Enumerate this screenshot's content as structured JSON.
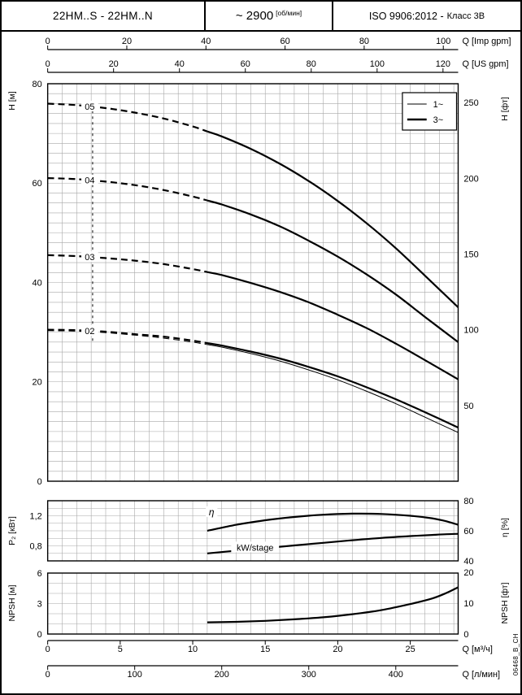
{
  "header": {
    "model": "22HM..S - 22HM..N",
    "speed": "~ 2900",
    "speed_unit": "[об/мин]",
    "standard": "ISO 9906:2012 -",
    "standard_class": "Класс 3B"
  },
  "watermark": "06468_B_CH",
  "colors": {
    "ink": "#000000",
    "grid": "#a8a8a8",
    "bg": "#ffffff"
  },
  "chart_data": {
    "type": "line",
    "title": "Pump performance curves 22HM..S - 22HM..N at ~2900 rpm",
    "x_unit": "м³/ч",
    "xlim": [
      0,
      28.3
    ],
    "x_axes": [
      {
        "id": "imp-gpm",
        "title": "Q [Imp gpm]",
        "factor": 3.6662,
        "ticks": [
          0,
          20,
          40,
          60,
          80,
          100
        ],
        "pos": "top"
      },
      {
        "id": "us-gpm",
        "title": "Q [US gpm]",
        "factor": 4.4029,
        "ticks": [
          0,
          20,
          40,
          60,
          80,
          100,
          120
        ],
        "pos": "top"
      },
      {
        "id": "m3h",
        "title": "Q [м³/ч]",
        "factor": 1,
        "ticks": [
          0,
          5,
          10,
          15,
          20,
          25
        ],
        "pos": "bottom"
      },
      {
        "id": "lmin",
        "title": "Q [л/мин]",
        "factor": 16.6667,
        "ticks": [
          0,
          100,
          200,
          300,
          400
        ],
        "pos": "bottom"
      }
    ],
    "panels": [
      {
        "id": "head",
        "ylabel": "H [м]",
        "ylim": [
          0,
          80
        ],
        "yticks": [
          0,
          20,
          40,
          60,
          80
        ],
        "grid_x": 1,
        "grid_y": 2,
        "right_axis": {
          "label": "H [фт]",
          "ticks": [
            50,
            100,
            150,
            200,
            250
          ],
          "m_per_unit": 0.3048
        },
        "min_flow_line": {
          "q": 3.1,
          "h_top": 75.7,
          "h_bottom": 28.2
        },
        "legend": [
          {
            "label": "1~",
            "weight": "thin"
          },
          {
            "label": "3~",
            "weight": "thick"
          }
        ],
        "series": [
          {
            "label": "05",
            "weight": "thick",
            "dash_until": 11,
            "label_q": 2.9,
            "q": [
              0,
              2,
              4,
              6,
              8,
              10,
              11,
              12,
              14,
              16,
              18,
              20,
              22,
              24,
              26,
              28.3
            ],
            "h": [
              76,
              75.7,
              75.1,
              74.2,
              73,
              71.4,
              70.4,
              69.4,
              66.9,
              63.9,
              60.4,
              56.4,
              51.9,
              46.9,
              41.4,
              35
            ]
          },
          {
            "label": "04",
            "weight": "thick",
            "dash_until": 11,
            "label_q": 2.9,
            "q": [
              0,
              2,
              4,
              6,
              8,
              10,
              11,
              12,
              14,
              16,
              18,
              20,
              22,
              24,
              26,
              28.3
            ],
            "h": [
              61,
              60.8,
              60.3,
              59.6,
              58.6,
              57.3,
              56.5,
              55.7,
              53.7,
              51.3,
              48.4,
              45.2,
              41.6,
              37.6,
              33.1,
              28
            ]
          },
          {
            "label": "03",
            "weight": "thick",
            "dash_until": 11,
            "label_q": 2.9,
            "q": [
              0,
              2,
              4,
              6,
              8,
              10,
              11,
              12,
              14,
              16,
              18,
              20,
              22,
              24,
              26,
              28.3
            ],
            "h": [
              45.5,
              45.3,
              44.9,
              44.4,
              43.7,
              42.7,
              42.1,
              41.5,
              39.9,
              38.1,
              36,
              33.5,
              30.8,
              27.7,
              24.4,
              20.5
            ]
          },
          {
            "label": "02",
            "weight": "thick",
            "dash_until": 11,
            "label_q": 2.9,
            "q": [
              0,
              2,
              4,
              6,
              8,
              10,
              11,
              12,
              14,
              16,
              18,
              20,
              22,
              24,
              26,
              28.3
            ],
            "h": [
              30.5,
              30.4,
              30.1,
              29.6,
              29.1,
              28.3,
              27.8,
              27.3,
              26.1,
              24.7,
              23,
              21.1,
              18.9,
              16.5,
              13.9,
              10.8
            ]
          },
          {
            "label": "",
            "weight": "thin",
            "dash_until": 11,
            "q": [
              0,
              2,
              4,
              6,
              8,
              10,
              11,
              12,
              14,
              16,
              18,
              20,
              22,
              24,
              26,
              28.3
            ],
            "h": [
              30.3,
              30.2,
              29.9,
              29.4,
              28.8,
              28,
              27.5,
              27,
              25.7,
              24.2,
              22.4,
              20.4,
              18.1,
              15.6,
              12.9,
              9.8
            ]
          }
        ]
      },
      {
        "id": "power",
        "ylabel": "P₂ [кВт]",
        "ylim": [
          0.6,
          1.4
        ],
        "yticks": [
          0.8,
          1.2
        ],
        "ytick_labels": [
          "0,8",
          "1,2"
        ],
        "grid_x": 1,
        "grid_y": 0.1,
        "right_axis_eta": {
          "label": "η [%]",
          "lim": [
            40,
            80
          ],
          "ticks": [
            40,
            60,
            80
          ]
        },
        "series": [
          {
            "label": "η",
            "italic": true,
            "axis": "right",
            "weight": "thick",
            "label_q": 11.3,
            "label_v": 72.5,
            "q": [
              11,
              13,
              15,
              17,
              19,
              21,
              23,
              25,
              26.5,
              27.5,
              28.3
            ],
            "v": [
              60,
              64,
              67,
              69.2,
              70.7,
              71.4,
              71.2,
              70,
              68.3,
              66.3,
              64
            ]
          },
          {
            "label": "kW/stage",
            "axis": "left",
            "weight": "thick",
            "label_q": 14.3,
            "label_v": 0.78,
            "q": [
              11,
              13,
              15,
              17,
              19,
              21,
              23,
              25,
              26.5,
              27.5,
              28.3
            ],
            "v": [
              0.7,
              0.735,
              0.77,
              0.805,
              0.84,
              0.875,
              0.905,
              0.93,
              0.945,
              0.955,
              0.96
            ]
          }
        ]
      },
      {
        "id": "npsh",
        "ylabel": "NPSH [м]",
        "ylim": [
          0,
          6
        ],
        "yticks": [
          0,
          3,
          6
        ],
        "grid_x": 1,
        "grid_y": 1,
        "right_axis": {
          "label": "NPSH [фт]",
          "ticks": [
            0,
            10,
            20
          ],
          "m_per_unit": 0.3048
        },
        "series": [
          {
            "label": "",
            "weight": "thick",
            "q": [
              11,
              13,
              15,
              17,
              19,
              21,
              23,
              25,
              26.5,
              27.5,
              28.3
            ],
            "v": [
              1.15,
              1.2,
              1.3,
              1.45,
              1.65,
              1.95,
              2.35,
              2.95,
              3.5,
              4.05,
              4.6
            ]
          }
        ]
      }
    ]
  }
}
